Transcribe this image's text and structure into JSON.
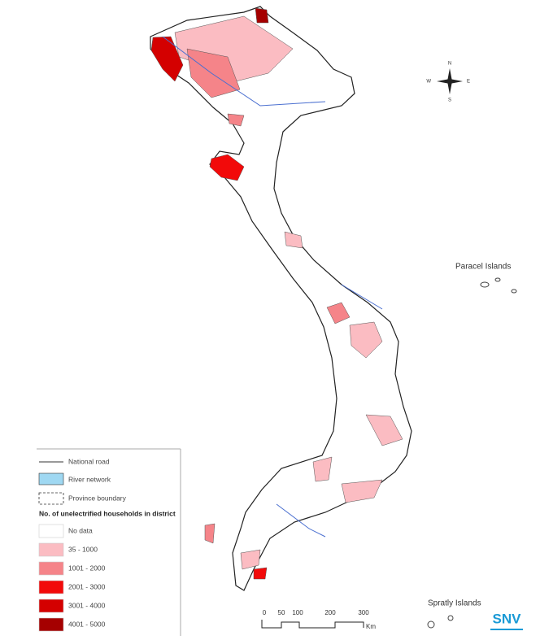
{
  "legend": {
    "items": [
      {
        "label": "National road"
      },
      {
        "label": "River network"
      },
      {
        "label": "Province boundary"
      }
    ],
    "title": "No. of unelectrified households in district",
    "classes": [
      {
        "label": "No data",
        "color": "#ffffff"
      },
      {
        "label": "35 - 1000",
        "color": "#fbbcc2"
      },
      {
        "label": "1001 - 2000",
        "color": "#f58489"
      },
      {
        "label": "2001 - 3000",
        "color": "#f20a0a"
      },
      {
        "label": "3001 - 4000",
        "color": "#d40000"
      },
      {
        "label": "4001 - 5000",
        "color": "#a50000"
      }
    ]
  },
  "labels": {
    "paracel": "Paracel Islands",
    "spratly": "Spratly Islands"
  },
  "scale": {
    "ticks": [
      "0",
      "50",
      "100",
      "200",
      "300"
    ],
    "unit": "Km"
  },
  "compass": {
    "n": "N",
    "s": "S",
    "e": "E",
    "w": "W"
  },
  "logo": "SNV"
}
